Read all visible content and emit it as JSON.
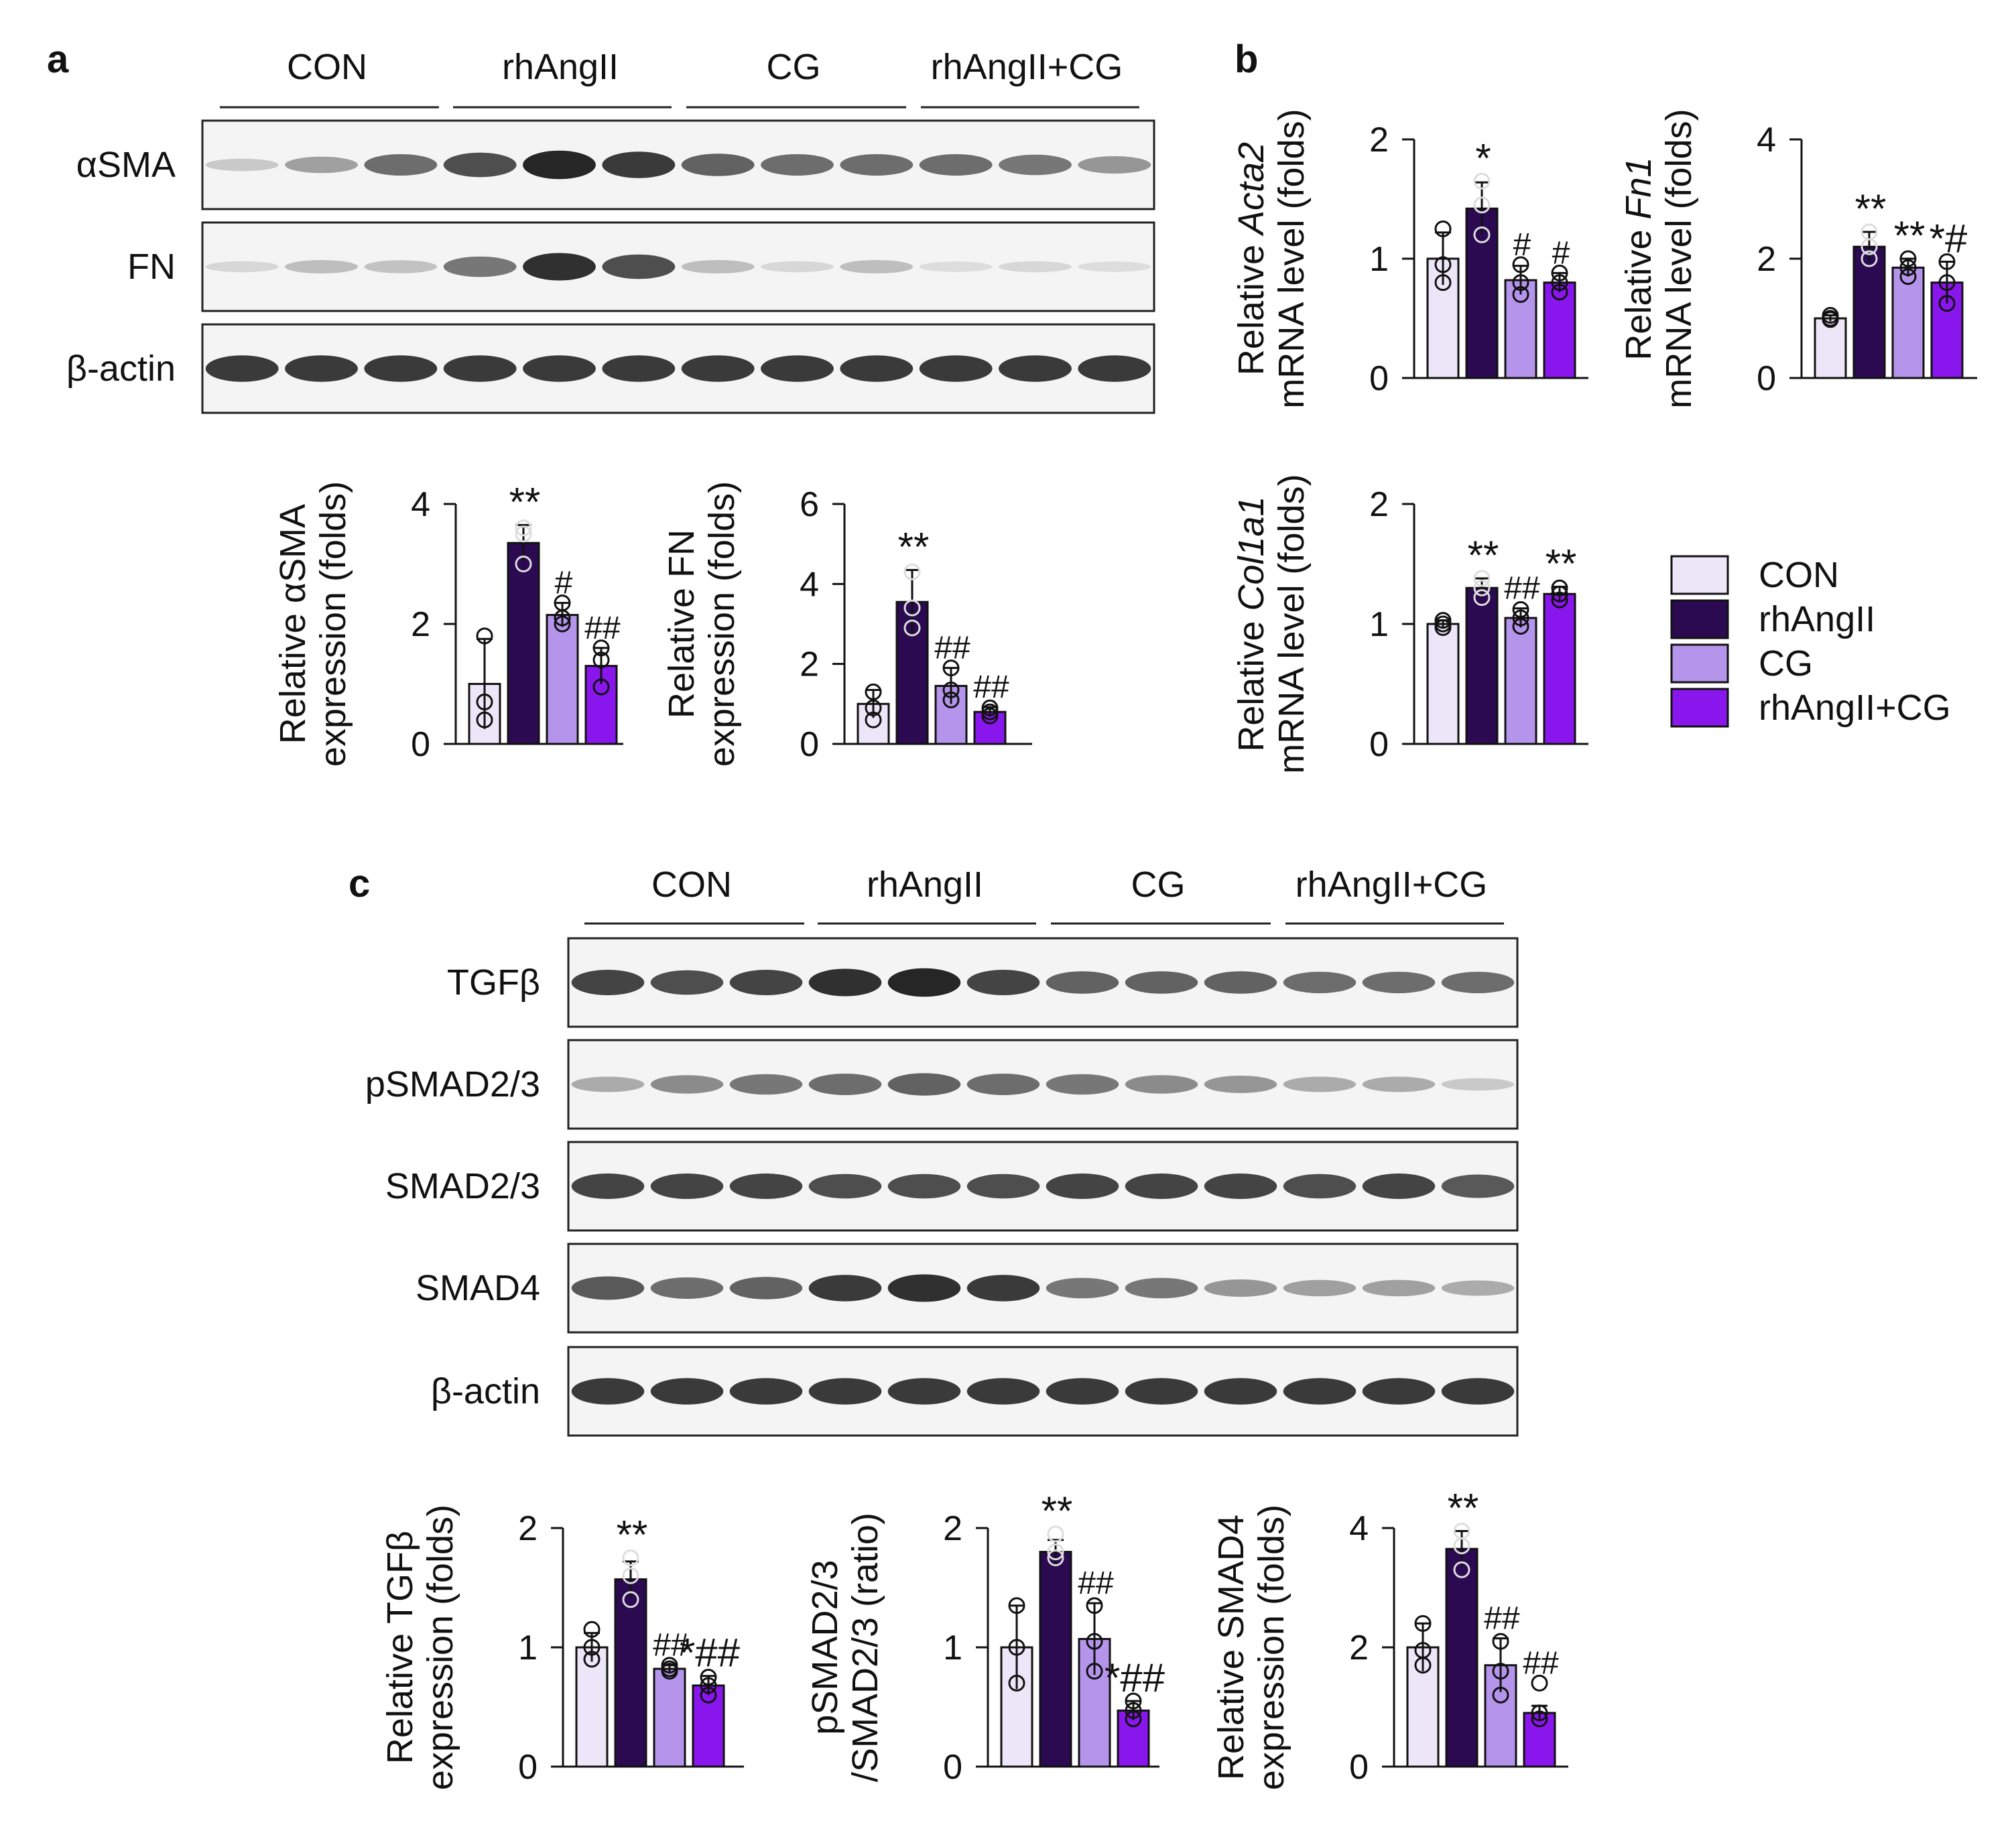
{
  "panels": {
    "a": "a",
    "b": "b",
    "c": "c"
  },
  "groups": [
    "CON",
    "rhAngII",
    "CG",
    "rhAngII+CG"
  ],
  "colors": {
    "CON": "#ece6f8",
    "rhAngII": "#2b0a52",
    "CG": "#b595ec",
    "rhAngII+CG": "#8a16ee",
    "band_dark": "#141414",
    "blot_bg": "#f4f4f4"
  },
  "blots_a": [
    {
      "label": "αSMA",
      "intensity": [
        0.15,
        0.35,
        0.6,
        0.75,
        0.95,
        0.85,
        0.65,
        0.6,
        0.6,
        0.6,
        0.55,
        0.4
      ]
    },
    {
      "label": "FN",
      "intensity": [
        0.08,
        0.2,
        0.18,
        0.55,
        0.9,
        0.75,
        0.2,
        0.08,
        0.2,
        0.05,
        0.08,
        0.05
      ]
    },
    {
      "label": "β-actin",
      "intensity": [
        0.85,
        0.85,
        0.85,
        0.85,
        0.85,
        0.85,
        0.85,
        0.85,
        0.85,
        0.85,
        0.85,
        0.85
      ]
    }
  ],
  "blots_c": [
    {
      "label": "TGFβ",
      "intensity": [
        0.8,
        0.75,
        0.8,
        0.9,
        0.95,
        0.8,
        0.65,
        0.65,
        0.65,
        0.6,
        0.6,
        0.6
      ]
    },
    {
      "label": "pSMAD2/3",
      "intensity": [
        0.3,
        0.45,
        0.55,
        0.6,
        0.65,
        0.6,
        0.55,
        0.45,
        0.4,
        0.3,
        0.3,
        0.15
      ]
    },
    {
      "label": "SMAD2/3",
      "intensity": [
        0.8,
        0.8,
        0.8,
        0.75,
        0.75,
        0.75,
        0.8,
        0.8,
        0.8,
        0.75,
        0.8,
        0.7
      ]
    },
    {
      "label": "SMAD4",
      "intensity": [
        0.7,
        0.6,
        0.65,
        0.85,
        0.9,
        0.85,
        0.55,
        0.55,
        0.4,
        0.35,
        0.35,
        0.3
      ]
    },
    {
      "label": "β-actin",
      "intensity": [
        0.85,
        0.85,
        0.85,
        0.85,
        0.85,
        0.85,
        0.85,
        0.85,
        0.85,
        0.85,
        0.85,
        0.85
      ]
    }
  ],
  "chart_data": [
    {
      "id": "a1",
      "type": "bar",
      "ylabel_1": "Relative αSMA",
      "ylabel_2": "expression (folds)",
      "ylim": [
        0,
        4
      ],
      "ticks": [
        0,
        2,
        4
      ],
      "categories": [
        "CON",
        "rhAngII",
        "CG",
        "rhAngII+CG"
      ],
      "values": [
        1.0,
        3.35,
        2.15,
        1.3
      ],
      "error": [
        0.75,
        0.3,
        0.2,
        0.3
      ],
      "points": [
        [
          1.8,
          0.7,
          0.4
        ],
        [
          3.6,
          3.5,
          3.0
        ],
        [
          2.35,
          2.1,
          2.0
        ],
        [
          1.6,
          1.4,
          0.95
        ]
      ],
      "annotations": [
        "",
        "**",
        "#",
        "##"
      ]
    },
    {
      "id": "a2",
      "type": "bar",
      "ylabel_1": "Relative FN",
      "ylabel_2": "expression (folds)",
      "ylim": [
        0,
        6
      ],
      "ticks": [
        0,
        2,
        4,
        6
      ],
      "categories": [
        "CON",
        "rhAngII",
        "CG",
        "rhAngII+CG"
      ],
      "values": [
        1.0,
        3.55,
        1.45,
        0.8
      ],
      "error": [
        0.35,
        0.8,
        0.45,
        0.12
      ],
      "points": [
        [
          1.3,
          0.9,
          0.6
        ],
        [
          4.3,
          3.4,
          2.9
        ],
        [
          1.9,
          1.35,
          1.1
        ],
        [
          0.9,
          0.8,
          0.7
        ]
      ],
      "annotations": [
        "",
        "**",
        "##",
        "##"
      ]
    },
    {
      "id": "b1",
      "type": "bar",
      "ylabel_1": "Relative ",
      "ylabel_1_italic": "Acta2",
      "ylabel_2": "mRNA level (folds)",
      "ylim": [
        0,
        2
      ],
      "ticks": [
        0,
        1,
        2
      ],
      "categories": [
        "CON",
        "rhAngII",
        "CG",
        "rhAngII+CG"
      ],
      "values": [
        1.0,
        1.42,
        0.82,
        0.8
      ],
      "error": [
        0.22,
        0.22,
        0.12,
        0.08
      ],
      "points": [
        [
          1.25,
          0.95,
          0.8
        ],
        [
          1.65,
          1.45,
          1.2
        ],
        [
          0.95,
          0.8,
          0.7
        ],
        [
          0.88,
          0.8,
          0.72
        ]
      ],
      "annotations": [
        "",
        "*",
        "#",
        "#"
      ]
    },
    {
      "id": "b2",
      "type": "bar",
      "ylabel_1": "Relative ",
      "ylabel_1_italic": "Fn1",
      "ylabel_2": "mRNA level (folds)",
      "ylim": [
        0,
        4
      ],
      "ticks": [
        0,
        2,
        4
      ],
      "categories": [
        "CON",
        "rhAngII",
        "CG",
        "rhAngII+CG"
      ],
      "values": [
        1.0,
        2.2,
        1.85,
        1.6
      ],
      "error": [
        0.05,
        0.25,
        0.15,
        0.35
      ],
      "points": [
        [
          1.05,
          1.0,
          0.98
        ],
        [
          2.45,
          2.2,
          2.0
        ],
        [
          2.0,
          1.85,
          1.7
        ],
        [
          1.95,
          1.6,
          1.25
        ]
      ],
      "annotations": [
        "",
        "**",
        "**",
        "*#"
      ]
    },
    {
      "id": "b3",
      "type": "bar",
      "ylabel_1": "Relative ",
      "ylabel_1_italic": "Col1a1",
      "ylabel_2": "mRNA level (folds)",
      "ylim": [
        0,
        2
      ],
      "ticks": [
        0,
        1,
        2
      ],
      "categories": [
        "CON",
        "rhAngII",
        "CG",
        "rhAngII+CG"
      ],
      "values": [
        1.0,
        1.3,
        1.05,
        1.25
      ],
      "error": [
        0.03,
        0.08,
        0.08,
        0.06
      ],
      "points": [
        [
          1.03,
          1.0,
          0.97
        ],
        [
          1.38,
          1.3,
          1.22
        ],
        [
          1.12,
          1.05,
          0.98
        ],
        [
          1.3,
          1.25,
          1.2
        ]
      ],
      "annotations": [
        "",
        "**",
        "##",
        "**"
      ]
    },
    {
      "id": "c1",
      "type": "bar",
      "ylabel_1": "Relative TGFβ",
      "ylabel_2": "expression (folds)",
      "ylim": [
        0,
        2
      ],
      "ticks": [
        0,
        1,
        2
      ],
      "categories": [
        "CON",
        "rhAngII",
        "CG",
        "rhAngII+CG"
      ],
      "values": [
        1.0,
        1.57,
        0.82,
        0.68
      ],
      "error": [
        0.12,
        0.15,
        0.03,
        0.08
      ],
      "points": [
        [
          1.15,
          1.0,
          0.9
        ],
        [
          1.75,
          1.6,
          1.4
        ],
        [
          0.85,
          0.82,
          0.8
        ],
        [
          0.75,
          0.68,
          0.6
        ]
      ],
      "annotations": [
        "",
        "**",
        "##",
        "*##"
      ]
    },
    {
      "id": "c2",
      "type": "bar",
      "ylabel_1": "pSMAD2/3",
      "ylabel_2": "/SMAD2/3 (ratio)",
      "ylim": [
        0,
        2
      ],
      "ticks": [
        0,
        1,
        2
      ],
      "categories": [
        "CON",
        "rhAngII",
        "CG",
        "rhAngII+CG"
      ],
      "values": [
        1.0,
        1.8,
        1.07,
        0.47
      ],
      "error": [
        0.35,
        0.1,
        0.3,
        0.08
      ],
      "points": [
        [
          1.35,
          1.0,
          0.7
        ],
        [
          1.95,
          1.8,
          1.75
        ],
        [
          1.35,
          1.05,
          0.8
        ],
        [
          0.55,
          0.47,
          0.4
        ]
      ],
      "annotations": [
        "",
        "**",
        "##",
        "*##"
      ]
    },
    {
      "id": "c3",
      "type": "bar",
      "ylabel_1": "Relative SMAD4",
      "ylabel_2": "expression (folds)",
      "ylim": [
        0,
        4
      ],
      "ticks": [
        0,
        2,
        4
      ],
      "categories": [
        "CON",
        "rhAngII",
        "CG",
        "rhAngII+CG"
      ],
      "values": [
        2.0,
        3.65,
        1.7,
        0.9
      ],
      "error": [
        0.4,
        0.3,
        0.45,
        0.12
      ],
      "points": [
        [
          2.4,
          1.95,
          1.7
        ],
        [
          3.95,
          3.7,
          3.3
        ],
        [
          2.1,
          1.6,
          1.2
        ],
        [
          1.4,
          0.9,
          0.8
        ]
      ],
      "annotations": [
        "",
        "**",
        "##",
        "##"
      ]
    }
  ]
}
